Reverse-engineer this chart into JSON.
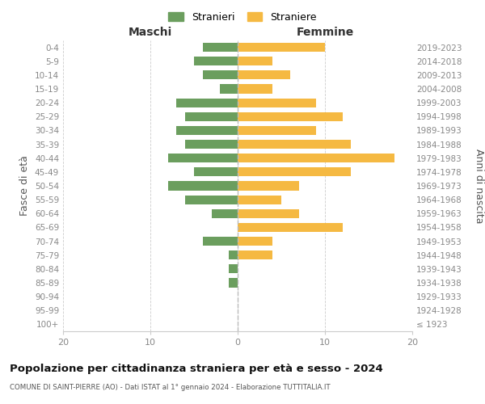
{
  "age_groups": [
    "100+",
    "95-99",
    "90-94",
    "85-89",
    "80-84",
    "75-79",
    "70-74",
    "65-69",
    "60-64",
    "55-59",
    "50-54",
    "45-49",
    "40-44",
    "35-39",
    "30-34",
    "25-29",
    "20-24",
    "15-19",
    "10-14",
    "5-9",
    "0-4"
  ],
  "birth_years": [
    "≤ 1923",
    "1924-1928",
    "1929-1933",
    "1934-1938",
    "1939-1943",
    "1944-1948",
    "1949-1953",
    "1954-1958",
    "1959-1963",
    "1964-1968",
    "1969-1973",
    "1974-1978",
    "1979-1983",
    "1984-1988",
    "1989-1993",
    "1994-1998",
    "1999-2003",
    "2004-2008",
    "2009-2013",
    "2014-2018",
    "2019-2023"
  ],
  "maschi": [
    0,
    0,
    0,
    1,
    1,
    1,
    4,
    0,
    3,
    6,
    8,
    5,
    8,
    6,
    7,
    6,
    7,
    2,
    4,
    5,
    4
  ],
  "femmine": [
    0,
    0,
    0,
    0,
    0,
    4,
    4,
    12,
    7,
    5,
    7,
    13,
    18,
    13,
    9,
    12,
    9,
    4,
    6,
    4,
    10
  ],
  "color_maschi": "#6b9e5e",
  "color_femmine": "#f5b942",
  "title": "Popolazione per cittadinanza straniera per età e sesso - 2024",
  "subtitle": "COMUNE DI SAINT-PIERRE (AO) - Dati ISTAT al 1° gennaio 2024 - Elaborazione TUTTITALIA.IT",
  "xlabel_left": "Maschi",
  "xlabel_right": "Femmine",
  "ylabel_left": "Fasce di età",
  "ylabel_right": "Anni di nascita",
  "legend_maschi": "Stranieri",
  "legend_femmine": "Straniere",
  "xlim": 20,
  "background_color": "#ffffff",
  "grid_color": "#cccccc",
  "axis_label_color": "#555555",
  "tick_label_color": "#888888"
}
